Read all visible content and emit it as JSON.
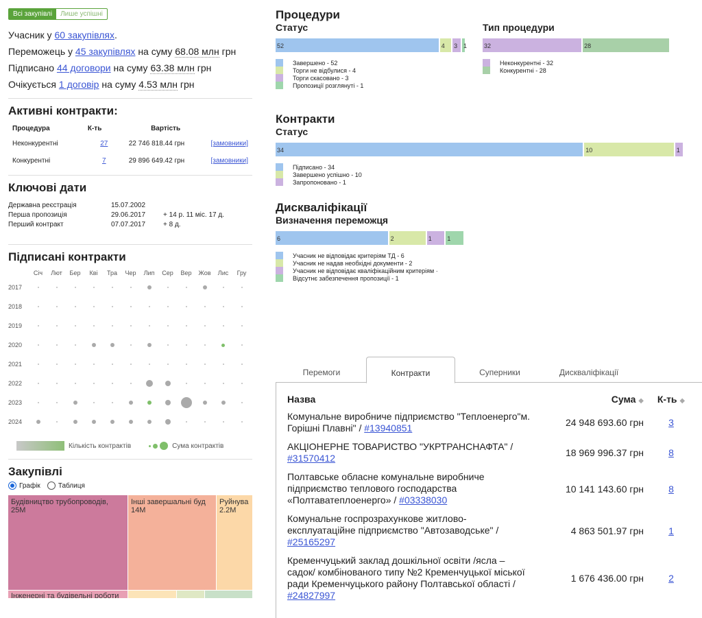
{
  "toggle": {
    "all": "Всі закупівлі",
    "success": "Лише успішні"
  },
  "summary": {
    "l1a": "Учасник у ",
    "l1link": "60 закупівлях",
    "l1b": ".",
    "l2a": "Переможець у ",
    "l2link": "45 закупівлях",
    "l2b": " на суму ",
    "l2sum": "68.08 млн",
    "l2c": " грн",
    "l3a": "Підписано ",
    "l3link": "44 договори",
    "l3b": " на суму ",
    "l3sum": "63.38 млн",
    "l3c": " грн",
    "l4a": "Очікується ",
    "l4link": "1 договір",
    "l4b": " на суму ",
    "l4sum": "4.53 млн",
    "l4c": " грн"
  },
  "active": {
    "title": "Активні контракти:",
    "headers": [
      "Процедура",
      "К-ть",
      "Вартість"
    ],
    "rows": [
      {
        "proc": "Неконкурентні",
        "count": "27",
        "value": "22 746 818.44 грн",
        "link": "[замовники]"
      },
      {
        "proc": "Конкурентні",
        "count": "7",
        "value": "29 896 649.42 грн",
        "link": "[замовники]"
      }
    ]
  },
  "keydates": {
    "title": "Ключові дати",
    "rows": [
      {
        "label": "Державна реєстрація",
        "date": "15.07.2002",
        "extra": ""
      },
      {
        "label": "Перша пропозиція",
        "date": "29.06.2017",
        "extra": "+ 14 р. 11 міс. 17 д."
      },
      {
        "label": "Перший контракт",
        "date": "07.07.2017",
        "extra": "+ 8 д."
      }
    ]
  },
  "signed": {
    "title": "Підписані контракти",
    "months": [
      "Січ",
      "Лют",
      "Бер",
      "Кві",
      "Тра",
      "Чер",
      "Лип",
      "Сер",
      "Вер",
      "Жов",
      "Лис",
      "Гру"
    ],
    "years": [
      "2017",
      "2018",
      "2019",
      "2020",
      "2021",
      "2022",
      "2023",
      "2024"
    ],
    "legend_count": "Кількість контрактів",
    "legend_sum": "Сума контрактів"
  },
  "purchases": {
    "title": "Закупівлі",
    "radio_chart": "Графік",
    "radio_table": "Таблиця",
    "tiles": [
      {
        "label": "Будівництво трубопроводів,",
        "value": "25M",
        "color": "#cc7a9c"
      },
      {
        "label": "Інші завершальні буд",
        "value": "14M",
        "color": "#f4b19a"
      },
      {
        "label": "Руйнува",
        "value": "2.2M",
        "color": "#fcd8a8"
      },
      {
        "label": "Інженерні та будівельні роботи",
        "value": "",
        "color": "#e8a0b4"
      }
    ]
  },
  "procedures": {
    "title": "Процедури",
    "status_title": "Статус",
    "status_values": [
      52,
      4,
      3,
      1
    ],
    "status_legend": [
      "Завершено - 52",
      "Торги не відбулися - 4",
      "Торги скасовано - 3",
      "Пропозиції розглянуті - 1"
    ],
    "type_title": "Тип процедури",
    "type_values": [
      32,
      28
    ],
    "type_legend": [
      "Неконкурентні - 32",
      "Конкурентні - 28"
    ]
  },
  "contracts": {
    "title": "Контракти",
    "status_title": "Статус",
    "values": [
      34,
      10,
      1
    ],
    "legend": [
      "Підписано - 34",
      "Завершено успішно - 10",
      "Запропоновано - 1"
    ]
  },
  "disq": {
    "title": "Дискваліфікації",
    "sub": "Визначення переможця",
    "values": [
      6,
      2,
      1,
      1
    ],
    "legend": [
      "Учасник не відповідає критеріям ТД - 6",
      "Учасник не надав необхідні документи - 2",
      "Учасник не відповідає кваліфікаційним критеріям ·",
      "Відсутнє забезпечення пропозиції - 1"
    ]
  },
  "colors": {
    "blue": "#9fc5ee",
    "lime": "#d8e8a8",
    "purple": "#cbb2e0",
    "green": "#9fd6ac"
  },
  "tabs": [
    "Перемоги",
    "Контракти",
    "Суперники",
    "Дискваліфікації"
  ],
  "ctable": {
    "headers": {
      "name": "Назва",
      "sum": "Сума",
      "count": "К-ть"
    },
    "rows": [
      {
        "name": "Комунальне виробниче підприємство \"Теплоенерго\"м. Горішні Плавні\" / ",
        "code": "#13940851",
        "sum": "24 948 693.60 грн",
        "count": "3"
      },
      {
        "name": "АКЦІОНЕРНЕ ТОВАРИСТВО \"УКРТРАНСНАФТА\" / ",
        "code": "#31570412",
        "sum": "18 969 996.37 грн",
        "count": "8"
      },
      {
        "name": "Полтавське обласне комунальне виробниче підприємство теплового господарства «Полтаватеплоенерго» / ",
        "code": "#03338030",
        "sum": "10 141 143.60 грн",
        "count": "8"
      },
      {
        "name": "Комунальне госпрозрахункове житлово-експлуатаційне підприємство \"Автозаводське\" / ",
        "code": "#25165297",
        "sum": "4 863 501.97 грн",
        "count": "1"
      },
      {
        "name": "Кременчуцький заклад дошкільної освіти /ясла – садок/ комбінованого типу №2 Кременчуцької міської ради Кременчуцького району Полтавської області / ",
        "code": "#24827997",
        "sum": "1 676 436.00 грн",
        "count": "2"
      }
    ]
  }
}
